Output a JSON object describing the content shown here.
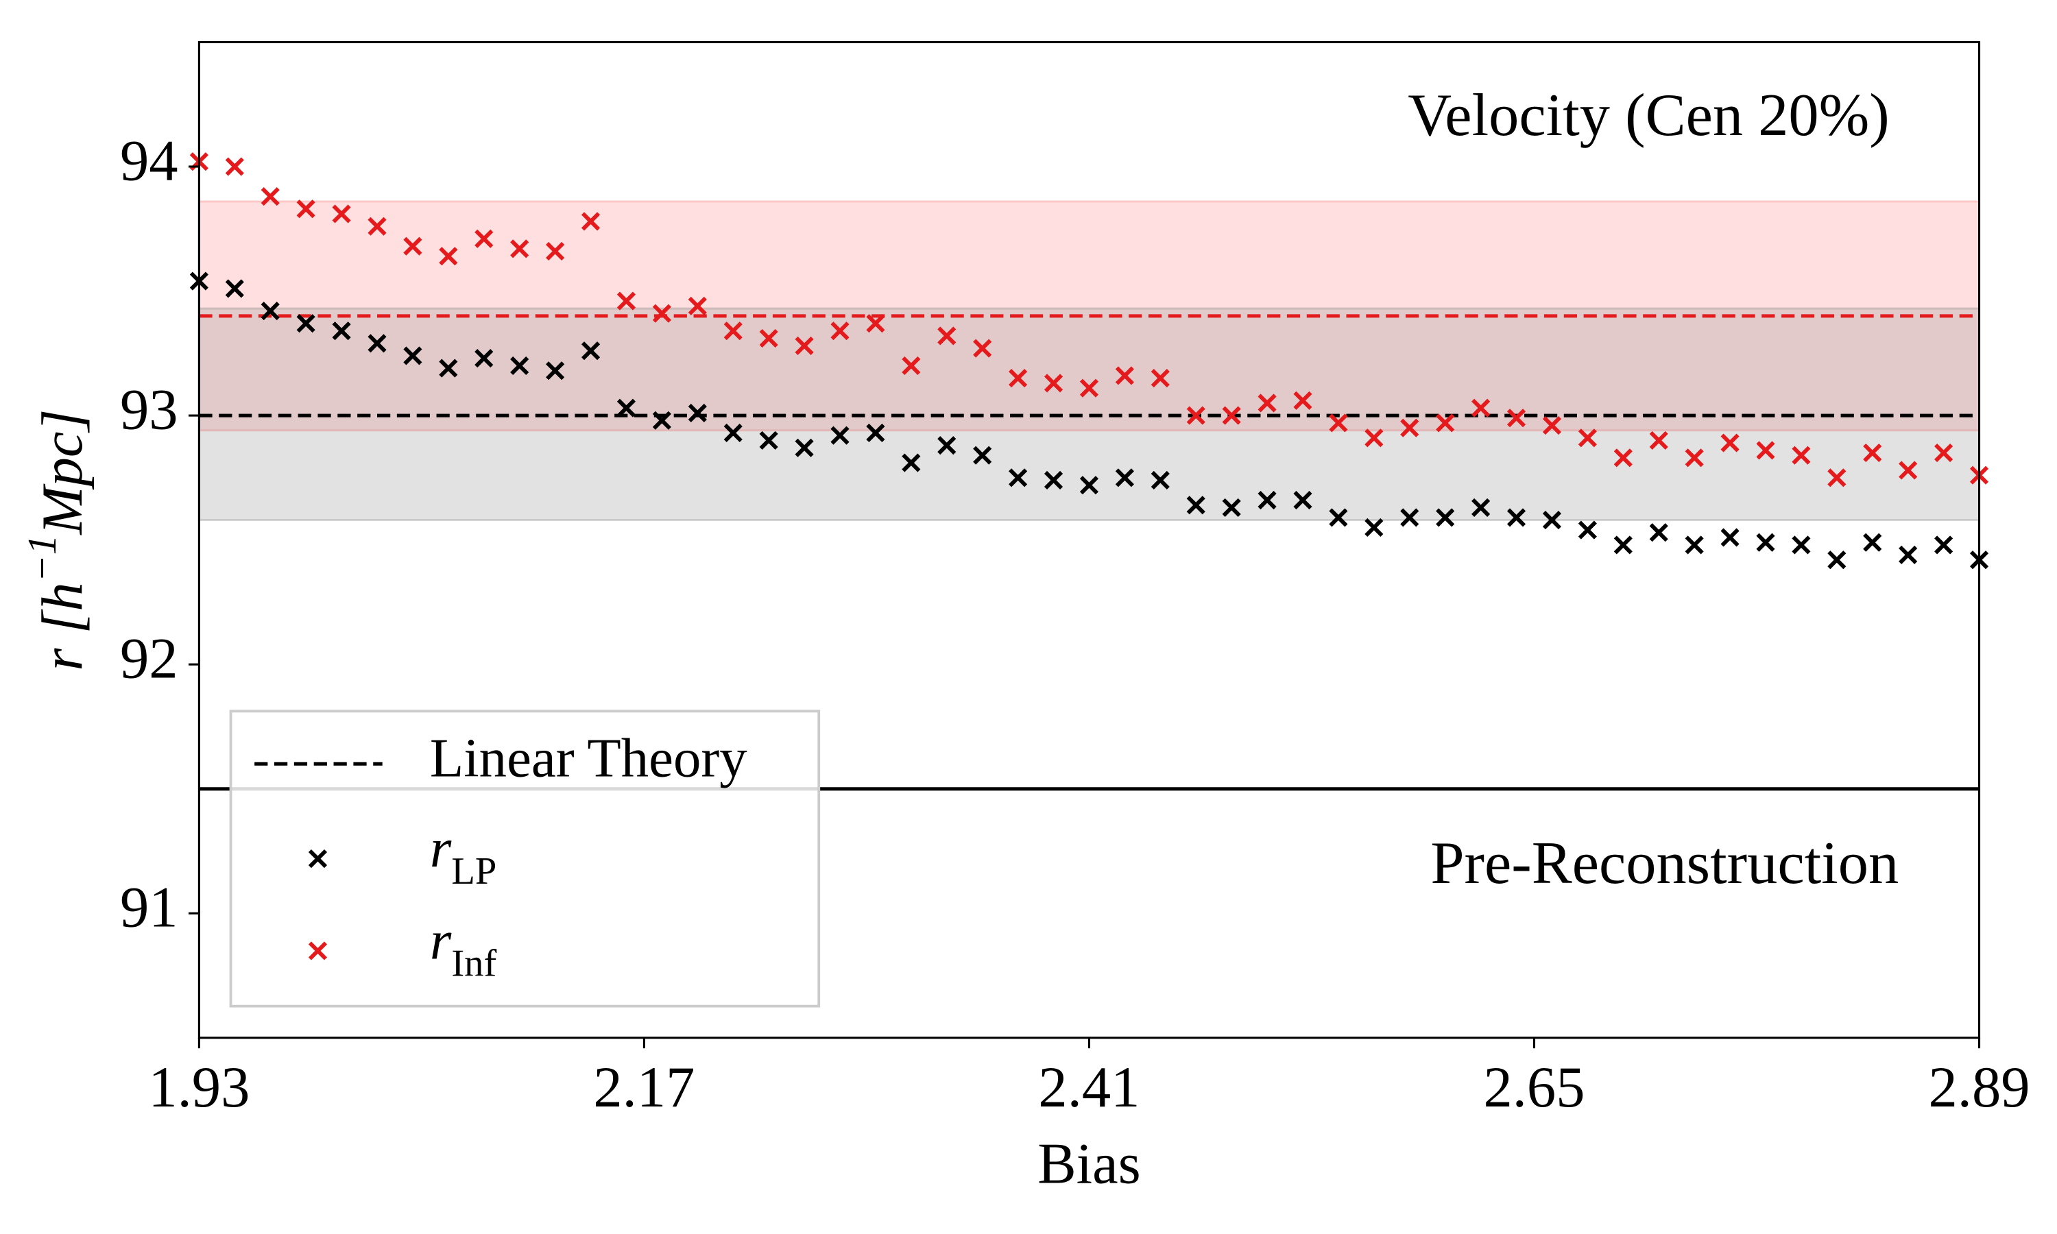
{
  "chart_data": {
    "type": "scatter",
    "xlabel": "Bias",
    "ylabel": "r [h^{−1}Mpc]",
    "xlim": [
      1.93,
      2.89
    ],
    "xticks": [
      1.93,
      2.17,
      2.41,
      2.65,
      2.89
    ],
    "ylim": [
      90.5,
      94.5
    ],
    "yticks": [
      91,
      92,
      93,
      94
    ],
    "annotations": [
      "Velocity (Cen 20%)",
      "Pre-Reconstruction"
    ],
    "bands": [
      {
        "lo": 92.94,
        "hi": 93.86,
        "color": "#ff7f7f"
      },
      {
        "lo": 92.58,
        "hi": 93.43,
        "color": "#8c8c8c"
      }
    ],
    "hlines": [
      {
        "value": 93.4,
        "style": "dashed",
        "color": "#e41a1c"
      },
      {
        "name": "Linear Theory",
        "value": 93.0,
        "style": "dashed",
        "color": "#000000"
      },
      {
        "value": 91.5,
        "style": "solid",
        "color": "#000000"
      }
    ],
    "x": [
      1.93,
      1.9492,
      1.9684,
      1.9876,
      2.0068,
      2.026,
      2.0452,
      2.0644,
      2.0836,
      2.1028,
      2.122,
      2.1412,
      2.1604,
      2.1796,
      2.1988,
      2.218,
      2.2372,
      2.2564,
      2.2756,
      2.2948,
      2.314,
      2.3332,
      2.3524,
      2.3716,
      2.3908,
      2.41,
      2.4292,
      2.4484,
      2.4676,
      2.4868,
      2.506,
      2.5252,
      2.5444,
      2.5636,
      2.5828,
      2.602,
      2.6212,
      2.6404,
      2.6596,
      2.6788,
      2.698,
      2.7172,
      2.7364,
      2.7556,
      2.7748,
      2.794,
      2.8132,
      2.8324,
      2.8516,
      2.8708,
      2.89
    ],
    "series": [
      {
        "name": "r_LP",
        "color": "#000000",
        "values": [
          93.54,
          93.51,
          93.42,
          93.37,
          93.34,
          93.29,
          93.24,
          93.19,
          93.23,
          93.2,
          93.18,
          93.26,
          93.03,
          92.98,
          93.01,
          92.93,
          92.9,
          92.87,
          92.92,
          92.93,
          92.81,
          92.88,
          92.84,
          92.75,
          92.74,
          92.72,
          92.75,
          92.74,
          92.64,
          92.63,
          92.66,
          92.66,
          92.59,
          92.55,
          92.59,
          92.59,
          92.63,
          92.59,
          92.58,
          92.54,
          92.48,
          92.53,
          92.48,
          92.51,
          92.49,
          92.48,
          92.42,
          92.49,
          92.44,
          92.48,
          92.42
        ]
      },
      {
        "name": "r_Inf",
        "color": "#e41a1c",
        "values": [
          94.02,
          94.0,
          93.88,
          93.83,
          93.81,
          93.76,
          93.68,
          93.64,
          93.71,
          93.67,
          93.66,
          93.78,
          93.46,
          93.41,
          93.44,
          93.34,
          93.31,
          93.28,
          93.34,
          93.37,
          93.2,
          93.32,
          93.27,
          93.15,
          93.13,
          93.11,
          93.16,
          93.15,
          93.0,
          93.0,
          93.05,
          93.06,
          92.97,
          92.91,
          92.95,
          92.97,
          93.03,
          92.99,
          92.96,
          92.91,
          92.83,
          92.9,
          92.83,
          92.89,
          92.86,
          92.84,
          92.75,
          92.85,
          92.78,
          92.85,
          92.76
        ]
      }
    ]
  }
}
